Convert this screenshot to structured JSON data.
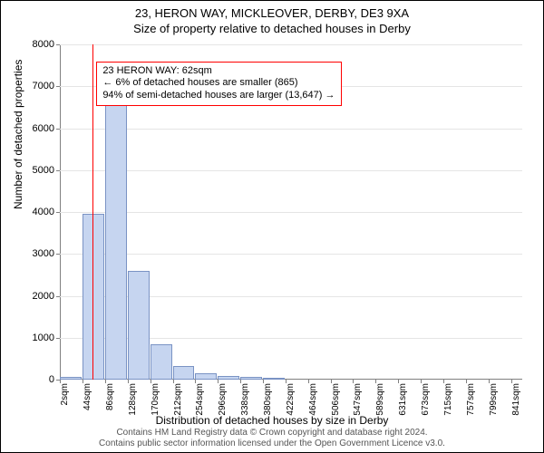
{
  "title": "23, HERON WAY, MICKLEOVER, DERBY, DE3 9XA",
  "subtitle": "Size of property relative to detached houses in Derby",
  "y_axis_label": "Number of detached properties",
  "x_axis_label": "Distribution of detached houses by size in Derby",
  "footer_line1": "Contains HM Land Registry data © Crown copyright and database right 2024.",
  "footer_line2": "Contains public sector information licensed under the Open Government Licence v3.0.",
  "chart": {
    "type": "histogram",
    "ylim": [
      0,
      8000
    ],
    "ytick_step": 1000,
    "yticks": [
      0,
      1000,
      2000,
      3000,
      4000,
      5000,
      6000,
      7000,
      8000
    ],
    "xlim_sqm": [
      2,
      862
    ],
    "xtick_labels": [
      "2sqm",
      "44sqm",
      "86sqm",
      "128sqm",
      "170sqm",
      "212sqm",
      "254sqm",
      "296sqm",
      "338sqm",
      "380sqm",
      "422sqm",
      "464sqm",
      "506sqm",
      "547sqm",
      "589sqm",
      "631sqm",
      "673sqm",
      "715sqm",
      "757sqm",
      "799sqm",
      "841sqm"
    ],
    "xtick_positions_sqm": [
      2,
      44,
      86,
      128,
      170,
      212,
      254,
      296,
      338,
      380,
      422,
      464,
      506,
      547,
      589,
      631,
      673,
      715,
      757,
      799,
      841
    ],
    "bar_color": "#c6d5f0",
    "bar_border": "#7a93c4",
    "background_color": "#ffffff",
    "grid_color": "#e5e5e5",
    "axis_color": "#808080",
    "bars": [
      {
        "x_sqm": 2,
        "width_sqm": 42,
        "value": 60
      },
      {
        "x_sqm": 44,
        "width_sqm": 42,
        "value": 3950
      },
      {
        "x_sqm": 86,
        "width_sqm": 42,
        "value": 6800
      },
      {
        "x_sqm": 128,
        "width_sqm": 42,
        "value": 2600
      },
      {
        "x_sqm": 170,
        "width_sqm": 42,
        "value": 850
      },
      {
        "x_sqm": 212,
        "width_sqm": 42,
        "value": 320
      },
      {
        "x_sqm": 254,
        "width_sqm": 42,
        "value": 160
      },
      {
        "x_sqm": 296,
        "width_sqm": 42,
        "value": 90
      },
      {
        "x_sqm": 338,
        "width_sqm": 42,
        "value": 60
      },
      {
        "x_sqm": 380,
        "width_sqm": 42,
        "value": 40
      }
    ],
    "reference_line_sqm": 62,
    "reference_line_color": "#ff0000",
    "annotation": {
      "line1": "23 HERON WAY: 62sqm",
      "line2": "← 6% of detached houses are smaller (865)",
      "line3": "94% of semi-detached houses are larger (13,647) →",
      "border_color": "#ff0000",
      "box_left_sqm": 70,
      "box_top_value": 7600
    }
  }
}
